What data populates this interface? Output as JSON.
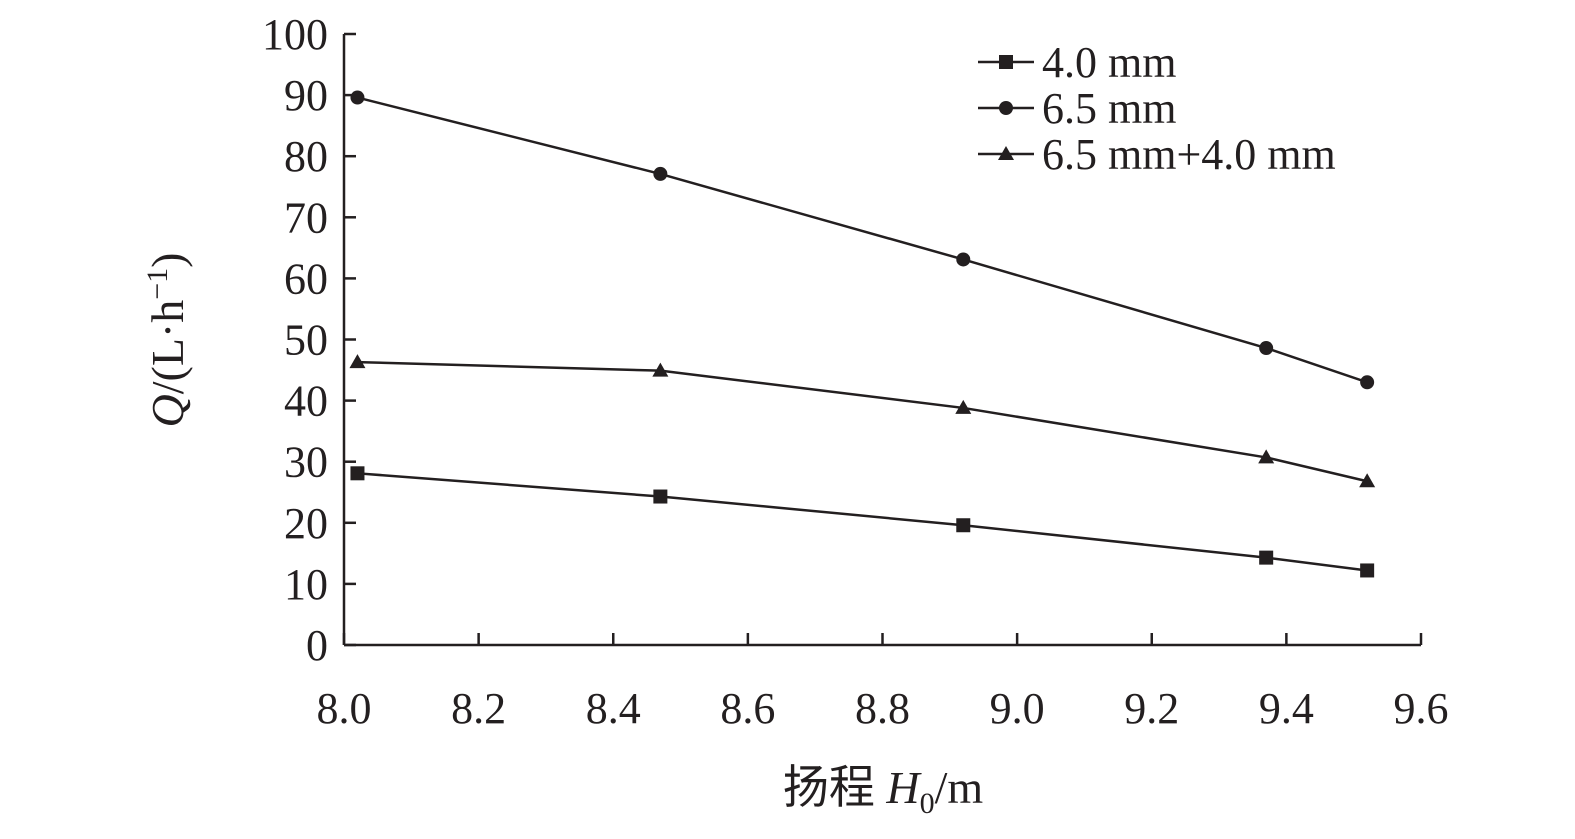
{
  "chart_data": {
    "type": "line",
    "title": "",
    "xlabel": "扬程 H0/m",
    "xlabel_parts": {
      "prefix": "扬程 ",
      "var": "H",
      "sub": "0",
      "suffix": "/m"
    },
    "ylabel": "Q/(L·h−1)",
    "ylabel_parts": {
      "var": "Q",
      "mid": "/(L·h",
      "sup": "−1",
      "suffix": ")"
    },
    "xlim": [
      8.0,
      9.6
    ],
    "ylim": [
      0,
      100
    ],
    "xticks": [
      "8.0",
      "8.2",
      "8.4",
      "8.6",
      "8.8",
      "9.0",
      "9.2",
      "9.4",
      "9.6"
    ],
    "yticks": [
      "0",
      "10",
      "20",
      "30",
      "40",
      "50",
      "60",
      "70",
      "80",
      "90",
      "100"
    ],
    "grid": false,
    "legend_position": "top-right",
    "series": [
      {
        "name": "4.0 mm",
        "marker": "square",
        "x": [
          8.02,
          8.47,
          8.92,
          9.37,
          9.52
        ],
        "values": [
          28.1,
          24.3,
          19.6,
          14.3,
          12.2
        ]
      },
      {
        "name": "6.5 mm",
        "marker": "circle",
        "x": [
          8.02,
          8.47,
          8.92,
          9.37,
          9.52
        ],
        "values": [
          89.6,
          77.1,
          63.1,
          48.6,
          43.0
        ]
      },
      {
        "name": "6.5 mm+4.0 mm",
        "marker": "triangle",
        "x": [
          8.02,
          8.47,
          8.92,
          9.37,
          9.52
        ],
        "values": [
          46.3,
          44.9,
          38.8,
          30.7,
          26.8
        ]
      }
    ]
  }
}
